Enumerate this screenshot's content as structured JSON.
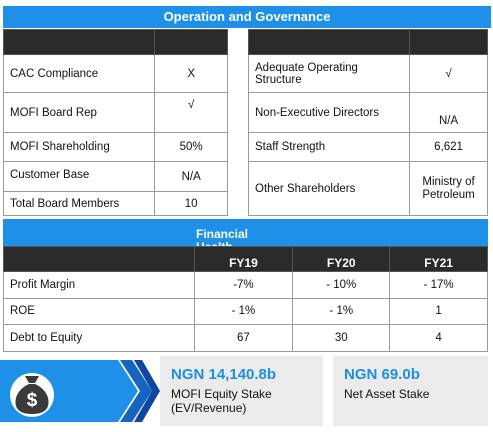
{
  "governance": {
    "title": "Operation and Governance",
    "left_rows": [
      {
        "label": "CAC Compliance",
        "value": "X"
      },
      {
        "label": "MOFI Board Rep",
        "value": "√"
      },
      {
        "label": "MOFI Shareholding",
        "value": "50%"
      },
      {
        "label": "Customer Base",
        "value": "N/A"
      },
      {
        "label": "Total Board Members",
        "value": "10"
      }
    ],
    "right_rows": [
      {
        "label": "Adequate Operating Structure",
        "value": "√"
      },
      {
        "label": "Non-Executive Directors",
        "value": "N/A"
      },
      {
        "label": "Staff Strength",
        "value": "6,621"
      },
      {
        "label": "Other Shareholders",
        "value": "Ministry of Petroleum"
      }
    ]
  },
  "financial": {
    "title": "Financial Health",
    "columns": [
      "FY19",
      "FY20",
      "FY21"
    ],
    "rows": [
      {
        "label": "Profit Margin",
        "values": [
          "-7%",
          "- 10%",
          "- 17%"
        ]
      },
      {
        "label": "ROE",
        "values": [
          "- 1%",
          "- 1%",
          "1"
        ]
      },
      {
        "label": "Debt to Equity",
        "values": [
          "67",
          "30",
          "4"
        ]
      }
    ]
  },
  "stakes": {
    "equity_amount": "NGN 14,140.8b",
    "equity_label": "MOFI Equity Stake (EV/Revenue)",
    "asset_amount": "NGN 69.0b",
    "asset_label": "Net Asset Stake"
  },
  "colors": {
    "accent": "#1e90e8",
    "header_dark": "#2b2b2b",
    "card_bg": "#ebebeb",
    "icon_dark": "#3a3a3a",
    "chevron_blue": "#1565c0"
  },
  "icons": {
    "money_bag": "money-bag-icon"
  }
}
